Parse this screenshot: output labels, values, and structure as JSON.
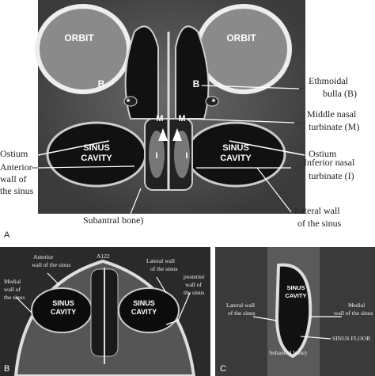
{
  "panels": [
    {
      "label": "A",
      "annotations": [
        {
          "lines": [
            "ORBIT"
          ]
        },
        {
          "lines": [
            "ORBIT"
          ]
        },
        {
          "lines": [
            "B"
          ]
        },
        {
          "lines": [
            "B"
          ]
        },
        {
          "lines": [
            "*"
          ]
        },
        {
          "lines": [
            "*"
          ]
        },
        {
          "lines": [
            "M"
          ]
        },
        {
          "lines": [
            "M"
          ]
        },
        {
          "lines": [
            "I"
          ]
        },
        {
          "lines": [
            "I"
          ]
        },
        {
          "lines": [
            "SINUS",
            "CAVITY"
          ]
        },
        {
          "lines": [
            "SINUS",
            "CAVITY"
          ]
        },
        {
          "lines": [
            "Ethmoidal",
            "bulla (B)"
          ]
        },
        {
          "lines": [
            "Middle nasal",
            "turbinate (M)"
          ]
        },
        {
          "lines": [
            "Ostium"
          ]
        },
        {
          "lines": [
            "Ostium"
          ]
        },
        {
          "lines": [
            "Anterior",
            "wall of",
            "the sinus"
          ]
        },
        {
          "lines": [
            "Inferior nasal",
            "turbinate (I)"
          ]
        },
        {
          "lines": [
            "Subantral bone)"
          ]
        },
        {
          "lines": [
            "Lateral wall",
            "of the sinus"
          ]
        }
      ]
    },
    {
      "label": "B",
      "annotations": [
        {
          "lines": [
            "A122"
          ]
        },
        {
          "lines": [
            "Anterior",
            "wall of the sinus"
          ]
        },
        {
          "lines": [
            "Lateral wall",
            "of the sinus"
          ]
        },
        {
          "lines": [
            "Medial",
            "wall of",
            "the sinus"
          ]
        },
        {
          "lines": [
            "posterior",
            "wall of",
            "the sinus"
          ]
        },
        {
          "lines": [
            "SINUS",
            "CAVITY"
          ]
        },
        {
          "lines": [
            "SINUS",
            "CAVITY"
          ]
        }
      ]
    },
    {
      "label": "C",
      "annotations": [
        {
          "lines": [
            "Lateral wall",
            "of the sinus"
          ]
        },
        {
          "lines": [
            "SINUS",
            "CAVITY"
          ]
        },
        {
          "lines": [
            "Medial",
            "wall of the sinus"
          ]
        },
        {
          "lines": [
            "SINUS FLOOR"
          ]
        },
        {
          "lines": [
            "Subantral bone)"
          ]
        }
      ]
    }
  ]
}
